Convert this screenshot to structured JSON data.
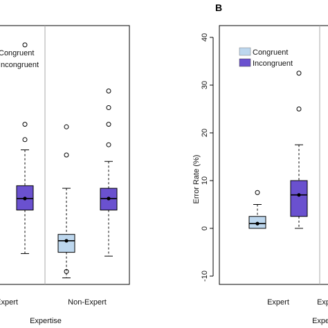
{
  "chart_data": [
    {
      "type": "boxplot",
      "panel_label": "",
      "xlabel": "Expertise",
      "ylabel": "",
      "categories": [
        "Expert",
        "Non-Expert"
      ],
      "legend": {
        "position": "top-left",
        "entries": [
          "Congruent",
          "Incongruent"
        ]
      },
      "colors": {
        "Congruent": "#bdd7ee",
        "Incongruent": "#6a51cf"
      },
      "boxes": [
        {
          "category": "Non-Expert",
          "series": "Congruent",
          "whisker_low": 2.0,
          "q1": 12.0,
          "median": 16.5,
          "q3": 19.0,
          "whisker_high": 37.0,
          "mean": 16.5,
          "outliers": [
            50.0,
            61.0,
            4.5
          ]
        },
        {
          "category": "Non-Expert",
          "series": "Incongruent",
          "whisker_low": 10.5,
          "q1": 28.5,
          "median": 33.0,
          "q3": 37.0,
          "whisker_high": 47.5,
          "mean": 33.0,
          "outliers": [
            54.0,
            62.0,
            68.5,
            75.0
          ]
        },
        {
          "category": "Expert",
          "series": "Incongruent",
          "whisker_low": 11.5,
          "q1": 28.5,
          "median": 33.0,
          "q3": 38.0,
          "whisker_high": 52.0,
          "mean": 33.0,
          "outliers": [
            56.0,
            62.0,
            93.0
          ]
        }
      ]
    },
    {
      "type": "boxplot",
      "panel_label": "B",
      "xlabel": "Expertise",
      "ylabel": "Error Rate (%)",
      "ylim": [
        -12,
        42
      ],
      "yticks": [
        -10,
        0,
        10,
        20,
        30,
        40
      ],
      "categories": [
        "Expert",
        "Non-Expert"
      ],
      "visible_category_labels": [
        "Expert",
        "Expert"
      ],
      "legend": {
        "position": "top-left",
        "entries": [
          "Congruent",
          "Incongruent"
        ]
      },
      "colors": {
        "Congruent": "#bdd7ee",
        "Incongruent": "#6a51cf"
      },
      "boxes": [
        {
          "category": "Expert",
          "series": "Congruent",
          "whisker_low": 0.0,
          "q1": 0.0,
          "median": 1.0,
          "q3": 2.5,
          "whisker_high": 5.0,
          "mean": 1.0,
          "outliers": [
            7.5
          ]
        },
        {
          "category": "Expert",
          "series": "Incongruent",
          "whisker_low": 0.0,
          "q1": 2.5,
          "median": 7.0,
          "q3": 10.0,
          "whisker_high": 17.5,
          "mean": 7.0,
          "outliers": [
            25.0,
            32.5
          ]
        }
      ]
    }
  ]
}
